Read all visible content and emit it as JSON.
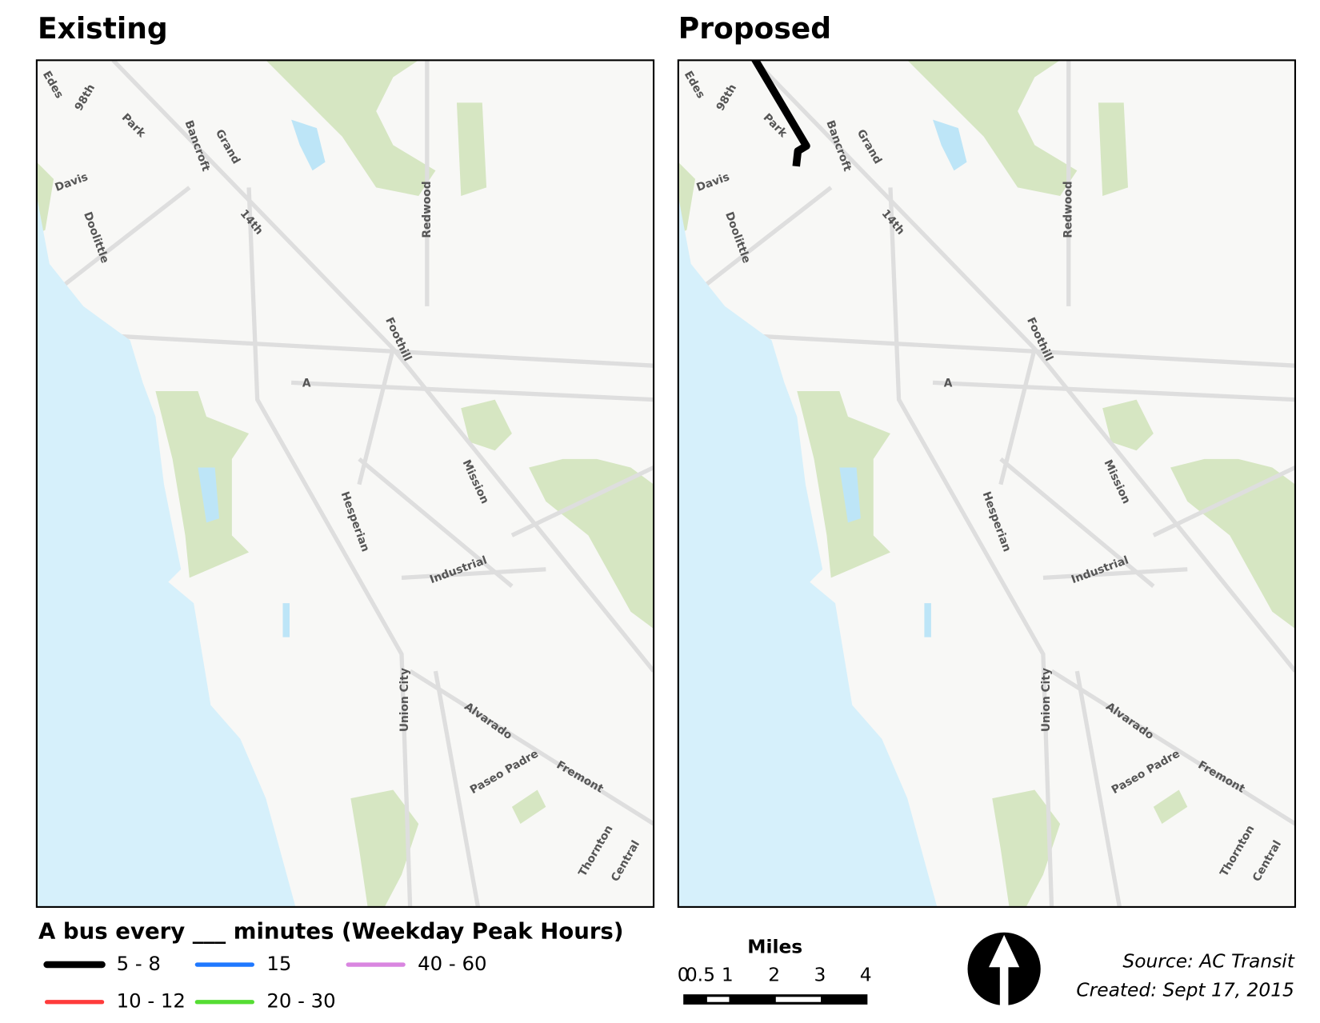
{
  "panels": [
    {
      "title": "Existing"
    },
    {
      "title": "Proposed"
    }
  ],
  "streets": [
    "Edes",
    "98th",
    "Park",
    "Bancroft",
    "Grand",
    "Davis",
    "14th",
    "Redwood",
    "Doolittle",
    "Foothill",
    "A",
    "Mission",
    "Hesperian",
    "Industrial",
    "Union City",
    "Alvarado",
    "Paseo Padre",
    "Fremont",
    "Thornton",
    "Central"
  ],
  "legend": {
    "title": "A bus every ___ minutes (Weekday Peak Hours)",
    "items": [
      {
        "label": "5 - 8",
        "color": "#000000"
      },
      {
        "label": "10 - 12",
        "color": "#ff3b3b"
      },
      {
        "label": "15",
        "color": "#1f78ff"
      },
      {
        "label": "20 - 30",
        "color": "#55dd33"
      },
      {
        "label": "40 - 60",
        "color": "#d985e0"
      }
    ]
  },
  "scale_bar": {
    "title": "Miles",
    "ticks": [
      0,
      0.5,
      1,
      2,
      3,
      4
    ]
  },
  "source": "Source: AC Transit",
  "created": "Created: Sept 17, 2015"
}
